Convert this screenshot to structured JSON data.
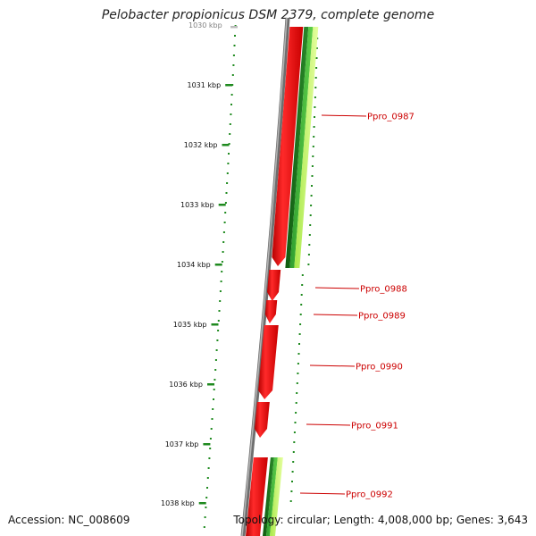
{
  "title": "Pelobacter propionicus DSM 2379, complete genome",
  "footer": {
    "accession": "Accession: NC_008609",
    "summary": "Topology: circular; Length: 4,008,000 bp; Genes: 3,643"
  },
  "colors": {
    "backbone": "#7a7a7a",
    "gene_red": "#e10000",
    "gene_dark_green": "#1e7d1e",
    "gene_green": "#3cb43c",
    "gene_light_green": "#b4ee50",
    "tick_green": "#1f8a1f",
    "label_red": "#cc0000"
  },
  "scale": {
    "unit": "kbp",
    "top_label": "1030 kbp",
    "ticks": [
      "1031 kbp",
      "1032 kbp",
      "1033 kbp",
      "1034 kbp",
      "1035 kbp",
      "1036 kbp",
      "1037 kbp",
      "1038 kbp"
    ]
  },
  "genes": [
    {
      "label": "Ppro_0987"
    },
    {
      "label": "Ppro_0988"
    },
    {
      "label": "Ppro_0989"
    },
    {
      "label": "Ppro_0990"
    },
    {
      "label": "Ppro_0991"
    },
    {
      "label": "Ppro_0992"
    }
  ]
}
